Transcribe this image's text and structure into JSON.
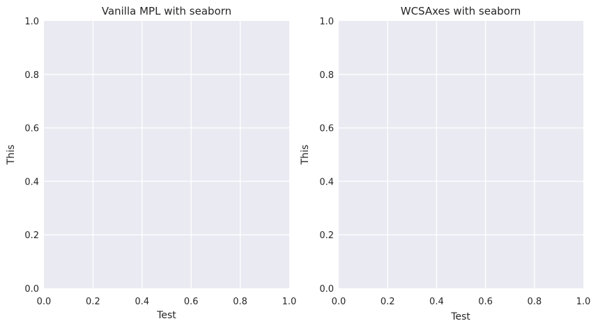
{
  "chart_data": [
    {
      "type": "line",
      "title": "Vanilla MPL with seaborn",
      "xlabel": "Test",
      "ylabel": "This",
      "xlim": [
        0.0,
        1.0
      ],
      "ylim": [
        0.0,
        1.0
      ],
      "xticks": [
        "0.0",
        "0.2",
        "0.4",
        "0.6",
        "0.8",
        "1.0"
      ],
      "yticks": [
        "0.0",
        "0.2",
        "0.4",
        "0.6",
        "0.8",
        "1.0"
      ],
      "grid": true,
      "series": [],
      "background_color": "#eaeaf2",
      "grid_color": "#ffffff"
    },
    {
      "type": "line",
      "title": "WCSAxes with seaborn",
      "xlabel": "Test",
      "ylabel": "This",
      "xlim": [
        0.0,
        1.0
      ],
      "ylim": [
        0.0,
        1.0
      ],
      "xticks": [
        "0.0",
        "0.2",
        "0.4",
        "0.6",
        "0.8",
        "1.0"
      ],
      "yticks": [
        "0.0",
        "0.2",
        "0.4",
        "0.6",
        "0.8",
        "1.0"
      ],
      "grid": true,
      "series": [],
      "background_color": "#eaeaf2",
      "grid_color": "#ffffff"
    }
  ]
}
